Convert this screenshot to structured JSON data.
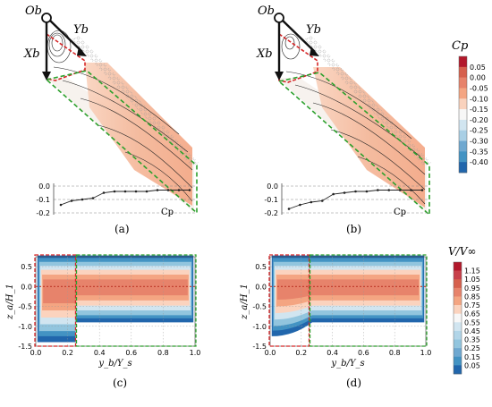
{
  "panels": {
    "a": {
      "label": "(a)"
    },
    "b": {
      "label": "(b)"
    },
    "c": {
      "label": "(c)"
    },
    "d": {
      "label": "(d)"
    }
  },
  "axes_labels": {
    "Ob": "Ob",
    "Yb": "Yb",
    "Xb": "Xb"
  },
  "cp_colorbar": {
    "title": "Cp",
    "ticks": [
      "0.05",
      "0.00",
      "-0.05",
      "-0.10",
      "-0.15",
      "-0.20",
      "-0.25",
      "-0.30",
      "-0.35",
      "-0.40"
    ],
    "colors": [
      "#b2182b",
      "#d6604d",
      "#e7836b",
      "#f4a582",
      "#f9d2bd",
      "#f7f7f7",
      "#d1e5f0",
      "#a9cfe5",
      "#6fa8d0",
      "#4393c3",
      "#2166ac"
    ]
  },
  "v_colorbar": {
    "title": "V/V∞",
    "ticks": [
      "1.15",
      "1.05",
      "0.95",
      "0.85",
      "0.75",
      "0.65",
      "0.55",
      "0.45",
      "0.35",
      "0.25",
      "0.15",
      "0.05"
    ],
    "colors": [
      "#b2182b",
      "#c8404a",
      "#d6604d",
      "#e7836b",
      "#f4a582",
      "#fbd3be",
      "#f7f7f7",
      "#d1e5f0",
      "#b1d5e8",
      "#92c5de",
      "#6fa8d0",
      "#4393c3",
      "#2166ac"
    ]
  },
  "chart_data": [
    {
      "type": "line",
      "panel": "a",
      "xlabel": "",
      "ylabel": "",
      "annotation": "Cp",
      "ylim": [
        -0.2,
        0.0
      ],
      "yticks": [
        "0.0",
        "-0.1",
        "-0.2"
      ],
      "x": [
        0,
        1,
        2,
        3,
        4,
        5,
        6,
        7,
        8,
        9,
        10,
        11,
        12
      ],
      "values": [
        -0.14,
        -0.11,
        -0.1,
        -0.09,
        -0.05,
        -0.04,
        -0.04,
        -0.04,
        -0.04,
        -0.03,
        -0.03,
        -0.03,
        -0.03
      ]
    },
    {
      "type": "line",
      "panel": "b",
      "xlabel": "",
      "ylabel": "",
      "annotation": "Cp",
      "ylim": [
        -0.2,
        0.0
      ],
      "yticks": [
        "0.0",
        "-0.1",
        "-0.2"
      ],
      "x": [
        0,
        1,
        2,
        3,
        4,
        5,
        6,
        7,
        8,
        9,
        10,
        11,
        12
      ],
      "values": [
        -0.17,
        -0.14,
        -0.12,
        -0.11,
        -0.06,
        -0.05,
        -0.04,
        -0.04,
        -0.03,
        -0.03,
        -0.03,
        -0.03,
        -0.03
      ]
    },
    {
      "type": "heatmap",
      "panel": "c",
      "xlabel": "y_b/Y_s",
      "ylabel": "z_a/H_1",
      "xlim": [
        0,
        1
      ],
      "ylim": [
        -1.5,
        0.75
      ],
      "xticks": [
        "0.0",
        "0.2",
        "0.4",
        "0.6",
        "0.8",
        "1.0"
      ],
      "yticks": [
        "0.5",
        "0.0",
        "-0.5",
        "-1.0",
        "-1.5"
      ]
    },
    {
      "type": "heatmap",
      "panel": "d",
      "xlabel": "y_b/Y_s",
      "ylabel": "z_a/H_1",
      "xlim": [
        0,
        1
      ],
      "ylim": [
        -1.5,
        0.75
      ],
      "xticks": [
        "0.0",
        "0.2",
        "0.4",
        "0.6",
        "0.8",
        "1.0"
      ],
      "yticks": [
        "0.5",
        "0.0",
        "-0.5",
        "-1.0",
        "-1.5"
      ]
    }
  ]
}
